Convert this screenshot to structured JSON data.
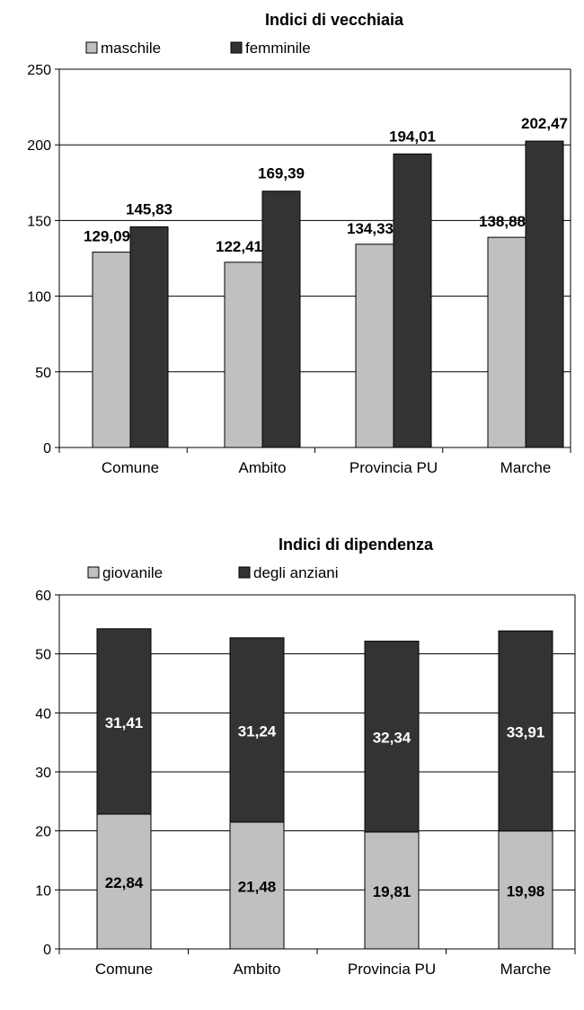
{
  "chart_data": [
    {
      "type": "bar",
      "title": "Indici di vecchiaia",
      "categories": [
        "Comune",
        "Ambito",
        "Provincia PU",
        "Marche"
      ],
      "series": [
        {
          "name": "maschile",
          "values": [
            129.09,
            122.41,
            134.33,
            138.88
          ],
          "labels": [
            "129,09",
            "122,41",
            "134,33",
            "138,88"
          ],
          "color": "#c0c0c0"
        },
        {
          "name": "femminile",
          "values": [
            145.83,
            169.39,
            194.01,
            202.47
          ],
          "labels": [
            "145,83",
            "169,39",
            "194,01",
            "202,47"
          ],
          "color": "#333333"
        }
      ],
      "ylim": [
        0,
        250
      ],
      "yticks": [
        "0",
        "50",
        "100",
        "150",
        "200",
        "250"
      ],
      "grid": true,
      "legend": "top-left"
    },
    {
      "type": "bar",
      "stacked": true,
      "title": "Indici di dipendenza",
      "categories": [
        "Comune",
        "Ambito",
        "Provincia PU",
        "Marche"
      ],
      "series": [
        {
          "name": "giovanile",
          "values": [
            22.84,
            21.48,
            19.81,
            19.98
          ],
          "labels": [
            "22,84",
            "21,48",
            "19,81",
            "19,98"
          ],
          "color": "#c0c0c0"
        },
        {
          "name": "degli anziani",
          "values": [
            31.41,
            31.24,
            32.34,
            33.91
          ],
          "labels": [
            "31,41",
            "31,24",
            "32,34",
            "33,91"
          ],
          "color": "#333333"
        }
      ],
      "ylim": [
        0,
        60
      ],
      "yticks": [
        "0",
        "10",
        "20",
        "30",
        "40",
        "50",
        "60"
      ],
      "grid": true,
      "legend": "top-left"
    }
  ]
}
